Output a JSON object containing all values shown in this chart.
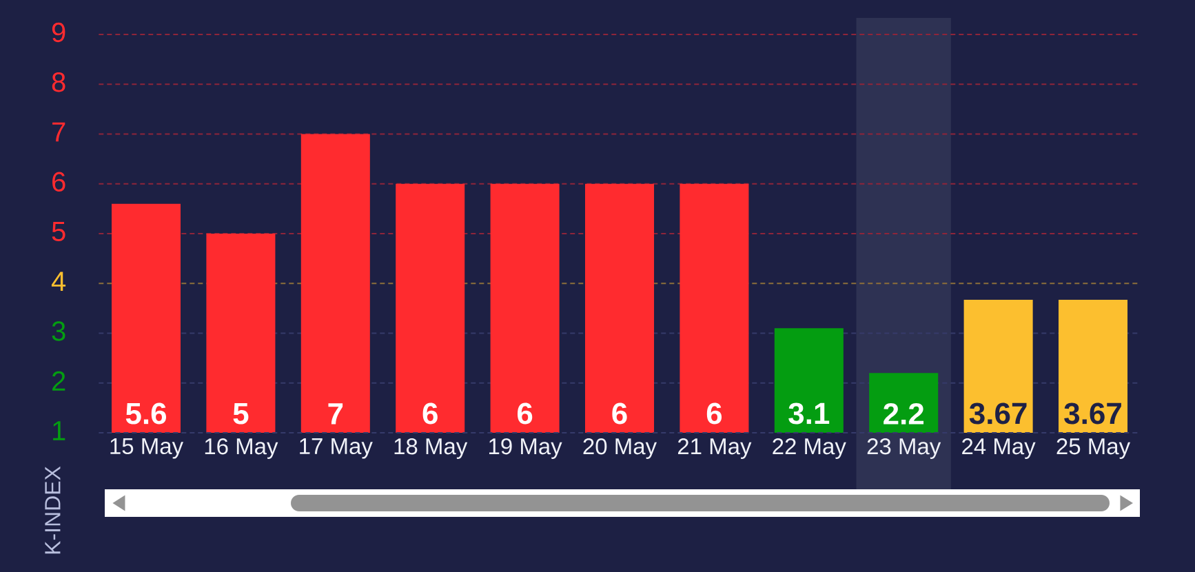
{
  "chart_data": {
    "type": "bar",
    "ylabel": "K-INDEX",
    "categories": [
      "15 May",
      "16 May",
      "17 May",
      "18 May",
      "19 May",
      "20 May",
      "21 May",
      "22 May",
      "23 May",
      "24 May",
      "25 May"
    ],
    "values": [
      5.6,
      5,
      7,
      6,
      6,
      6,
      6,
      3.1,
      2.2,
      3.67,
      3.67
    ],
    "colors": [
      "#ff2b2f",
      "#ff2b2f",
      "#ff2b2f",
      "#ff2b2f",
      "#ff2b2f",
      "#ff2b2f",
      "#ff2b2f",
      "#049d11",
      "#049d11",
      "#fcbf2f",
      "#fcbf2f"
    ],
    "ylim": [
      1,
      9
    ],
    "yticks": [
      1,
      2,
      3,
      4,
      5,
      6,
      7,
      8,
      9
    ],
    "data_labels": true,
    "grid": "y",
    "ref_lines": [
      {
        "axis": "y",
        "value": 4,
        "color": "#8d6f3a",
        "line_style": "dashed"
      }
    ],
    "bands": [
      {
        "axis": "x",
        "from": "23 May",
        "to": "23 May",
        "color": "#2e3253"
      }
    ]
  }
}
